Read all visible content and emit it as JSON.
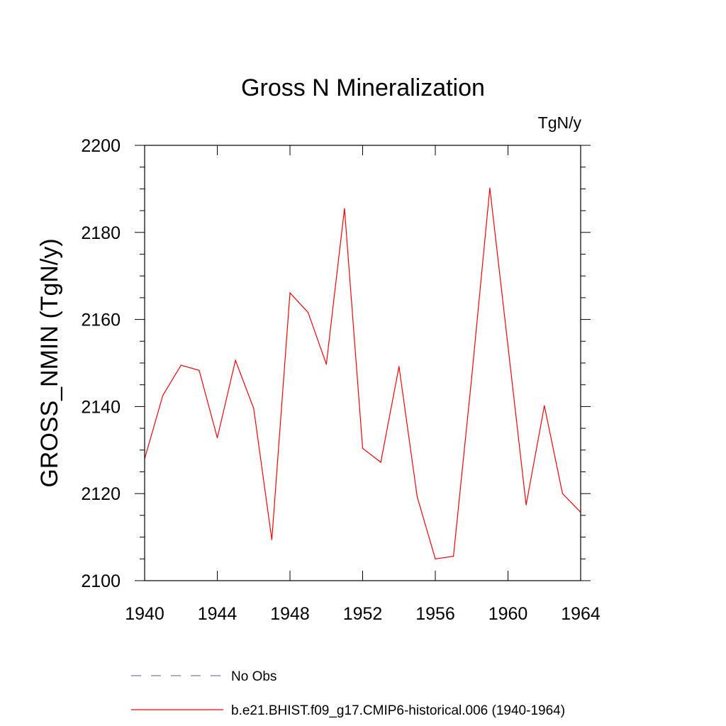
{
  "chart_data": {
    "type": "line",
    "title": "Gross N Mineralization",
    "units_label": "TgN/y",
    "ylabel": "GROSS_NMIN  (TgN/y)",
    "xlabel": "",
    "xlim": [
      1940,
      1964
    ],
    "ylim": [
      2100,
      2200
    ],
    "x_ticks": [
      1940,
      1944,
      1948,
      1952,
      1956,
      1960,
      1964
    ],
    "y_ticks": [
      2100,
      2120,
      2140,
      2160,
      2180,
      2200
    ],
    "grid": false,
    "legend_position": "bottom",
    "series": [
      {
        "name": "b.e21.BHIST.f09_g17.CMIP6-historical.006 (1940-1964)",
        "color": "#ff0000",
        "style": "solid",
        "x": [
          1940,
          1941,
          1942,
          1943,
          1944,
          1945,
          1946,
          1947,
          1948,
          1949,
          1950,
          1951,
          1952,
          1953,
          1954,
          1955,
          1956,
          1957,
          1958,
          1959,
          1960,
          1961,
          1962,
          1963,
          1964
        ],
        "y": [
          2128,
          2142.5,
          2149.5,
          2148.3,
          2132.8,
          2150.6,
          2139.6,
          2109.4,
          2166.1,
          2161.6,
          2149.7,
          2185.5,
          2130.4,
          2127.2,
          2149.2,
          2119.3,
          2105,
          2105.6,
          2146.7,
          2190.2,
          2153.9,
          2117.4,
          2140.2,
          2120,
          2115.7
        ]
      }
    ],
    "legend": [
      {
        "label": "No Obs",
        "color": "#7a7ab8",
        "style": "dashed"
      },
      {
        "label": "b.e21.BHIST.f09_g17.CMIP6-historical.006 (1940-1964)",
        "color": "#ff0000",
        "style": "solid"
      }
    ]
  }
}
